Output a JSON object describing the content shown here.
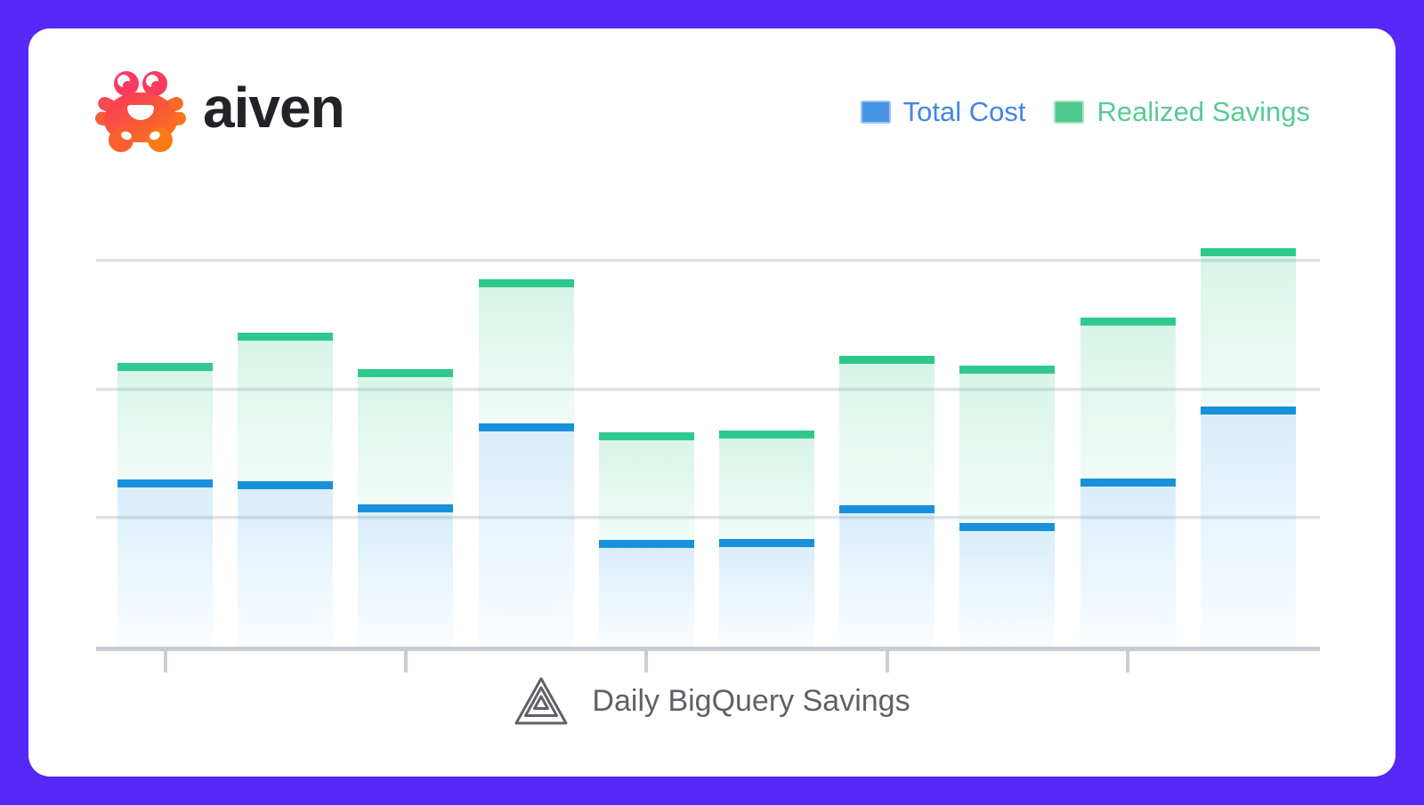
{
  "header": {
    "logo_text": "aiven",
    "logo_icon": "crab-icon"
  },
  "legend": {
    "items": [
      {
        "label": "Total Cost",
        "swatch_color": "#4796E4",
        "text_color": "#4285E8"
      },
      {
        "label": "Realized Savings",
        "swatch_color": "#4FC98E",
        "text_color": "#57CB94"
      }
    ],
    "position": "top-right"
  },
  "footer": {
    "icon": "mountain-logo-icon",
    "label": "Daily BigQuery Savings"
  },
  "colors": {
    "frame_purple": "#5528F5",
    "card_background": "#FFFFFF",
    "total_cost_marker": "#1791DC",
    "realized_savings_marker": "#2FC98E",
    "gridline": "#DFE2E7",
    "axis": "#C7CDD4",
    "caption_text": "#5E6165",
    "wordmark_text": "#232327"
  },
  "chart_data": {
    "type": "bar",
    "subtype": "stacked (cost segment with savings segment above, marker line at each segment top)",
    "title": "Daily BigQuery Savings",
    "bar_count": 10,
    "categories": [
      "",
      "",
      "",
      "",
      "",
      "",
      "",
      "",
      "",
      ""
    ],
    "series": [
      {
        "name": "Total Cost",
        "color": "#1791DC",
        "values": [
          1.3,
          1.29,
          1.11,
          1.74,
          0.83,
          0.84,
          1.1,
          0.96,
          1.31,
          1.87
        ]
      },
      {
        "name": "Realized Savings",
        "color": "#2FC98E",
        "values": [
          0.91,
          1.15,
          1.05,
          1.12,
          0.84,
          0.84,
          1.16,
          1.23,
          1.25,
          1.23
        ]
      }
    ],
    "stack_totals": [
      2.21,
      2.44,
      2.16,
      2.86,
      1.67,
      1.68,
      2.26,
      2.19,
      2.56,
      3.1
    ],
    "value_units": "relative units (axes are unlabeled; 1.0 equals one gridline interval)",
    "xlabel": "",
    "ylabel": "",
    "ylim": [
      0,
      3.44
    ],
    "y_gridlines_at": [
      1,
      2,
      3
    ],
    "x_ticks_at_bar_indexes": [
      0,
      2,
      4,
      6,
      8
    ],
    "grid": true,
    "legend_position": "top-right"
  }
}
